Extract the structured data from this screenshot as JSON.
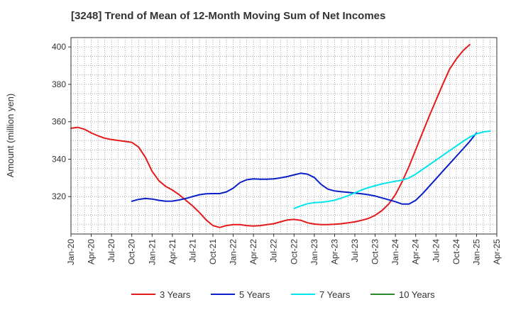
{
  "chart_data": {
    "type": "line",
    "title": "[3248]  Trend of Mean of 12-Month Moving Sum of Net Incomes",
    "xlabel": "",
    "ylabel": "Amount (million yen)",
    "ylim": [
      300,
      405
    ],
    "yticks": [
      320,
      340,
      360,
      380,
      400
    ],
    "xticks": [
      "Jan-20",
      "Apr-20",
      "Jul-20",
      "Oct-20",
      "Jan-21",
      "Apr-21",
      "Jul-21",
      "Oct-21",
      "Jan-22",
      "Apr-22",
      "Jul-22",
      "Oct-22",
      "Jan-23",
      "Apr-23",
      "Jul-23",
      "Oct-23",
      "Jan-24",
      "Apr-24",
      "Jul-24",
      "Oct-24",
      "Jan-25",
      "Apr-25"
    ],
    "grid": true,
    "legend_position": "bottom",
    "series": [
      {
        "name": "3 Years",
        "color": "#e41a1c",
        "start": "Jan-20",
        "values": [
          356.5,
          357,
          356,
          354,
          352.5,
          351.2,
          350.5,
          350,
          349.5,
          349,
          346.5,
          341,
          333.5,
          328.5,
          325.5,
          323.5,
          321,
          318,
          315,
          311.5,
          307.5,
          304.5,
          303.5,
          304.5,
          305,
          305,
          304.5,
          304.3,
          304.5,
          305,
          305.5,
          306.5,
          307.5,
          307.8,
          307.3,
          306,
          305.3,
          305,
          305,
          305.2,
          305.5,
          306,
          306.5,
          307.3,
          308.3,
          310,
          312.5,
          316,
          321,
          328,
          336,
          345,
          354,
          363,
          371.5,
          380,
          388,
          393.5,
          398,
          401.3
        ]
      },
      {
        "name": "5 Years",
        "color": "#0a1fc8",
        "start": "Oct-20",
        "values": [
          317.5,
          318.5,
          319,
          318.7,
          318,
          317.5,
          317.6,
          318.2,
          319,
          320,
          321,
          321.5,
          321.6,
          321.6,
          322.5,
          324.5,
          327.5,
          329,
          329.5,
          329.3,
          329.3,
          329.5,
          330,
          330.7,
          331.6,
          332.5,
          332,
          330.2,
          326.5,
          324,
          323,
          322.6,
          322.3,
          321.9,
          321.5,
          321,
          320.3,
          319.3,
          318.3,
          317.3,
          316,
          316,
          318,
          321.5,
          325.5,
          329.5,
          333.5,
          337.5,
          341.5,
          345.5,
          349.5,
          354
        ]
      },
      {
        "name": "7 Years",
        "color": "#00e5ee",
        "start": "Oct-22",
        "values": [
          313.7,
          315,
          316.2,
          316.8,
          317,
          317.4,
          318.1,
          319.2,
          320.5,
          322,
          323.5,
          324.8,
          325.8,
          326.8,
          327.5,
          328.2,
          328.8,
          330,
          332,
          334.5,
          337,
          339.5,
          342,
          344.5,
          347,
          349.5,
          351.8,
          353.5,
          354.6,
          355
        ]
      },
      {
        "name": "10 Years",
        "color": "#2a8a2a",
        "start": "Jan-20",
        "values": []
      }
    ]
  }
}
